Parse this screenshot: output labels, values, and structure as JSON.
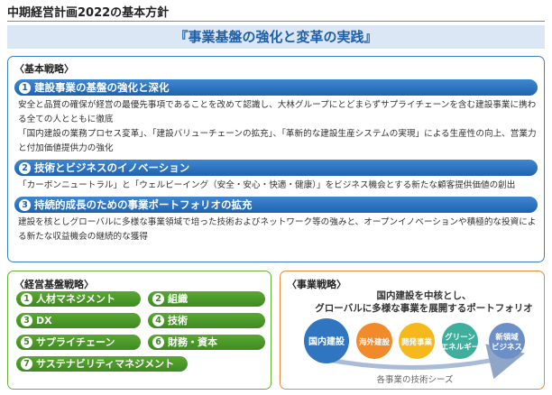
{
  "header": {
    "title": "中期経営計画2022の基本方針"
  },
  "banner": "『事業基盤の強化と変革の実践』",
  "basic_strategy": {
    "heading": "〈基本戦略〉",
    "items": [
      {
        "number": "1",
        "title": "建設事業の基盤の強化と深化",
        "paragraphs": [
          "安全と品質の確保が経営の最優先事項であることを改めて認識し、大林グループにとどまらずサプライチェーンを含む建設事業に携わる全ての人とともに徹底",
          "「国内建設の業務プロセス変革」、「建設バリューチェーンの拡充」、「革新的な建設生産システムの実現」による生産性の向上、営業力と付加価値提供力の強化"
        ]
      },
      {
        "number": "2",
        "title": "技術とビジネスのイノベーション",
        "paragraphs": [
          "「カーボンニュートラル」と「ウェルビーイング（安全・安心・快適・健康）」をビジネス機会とする新たな顧客提供価値の創出"
        ]
      },
      {
        "number": "3",
        "title": "持続的成長のための事業ポートフォリオの拡充",
        "paragraphs": [
          "建設を核としグローバルに多様な事業領域で培った技術およびネットワーク等の強みと、オープンイノベーションや積極的な投資による新たな収益機会の継続的な獲得"
        ]
      }
    ]
  },
  "management_strategy": {
    "heading": "〈経営基盤戦略〉",
    "items": [
      {
        "number": "1",
        "label": "人材マネジメント"
      },
      {
        "number": "2",
        "label": "組織"
      },
      {
        "number": "3",
        "label": "DX"
      },
      {
        "number": "4",
        "label": "技術"
      },
      {
        "number": "5",
        "label": "サプライチェーン"
      },
      {
        "number": "6",
        "label": "財務・資本"
      },
      {
        "number": "7",
        "label": "サステナビリティマネジメント"
      }
    ]
  },
  "business_strategy": {
    "heading": "〈事業戦略〉",
    "description": [
      "国内建設を中核とし、",
      "グローバルに多様な事業を展開するポートフォリオ"
    ],
    "circles": [
      {
        "lines": [
          "国内建設"
        ]
      },
      {
        "lines": [
          "海外建設"
        ]
      },
      {
        "lines": [
          "開発事業"
        ]
      },
      {
        "lines": [
          "グリーン",
          "エネルギー"
        ]
      },
      {
        "lines": [
          "新領域",
          "ビジネス"
        ]
      }
    ],
    "arrow_label": "各事業の技術シーズ"
  }
}
